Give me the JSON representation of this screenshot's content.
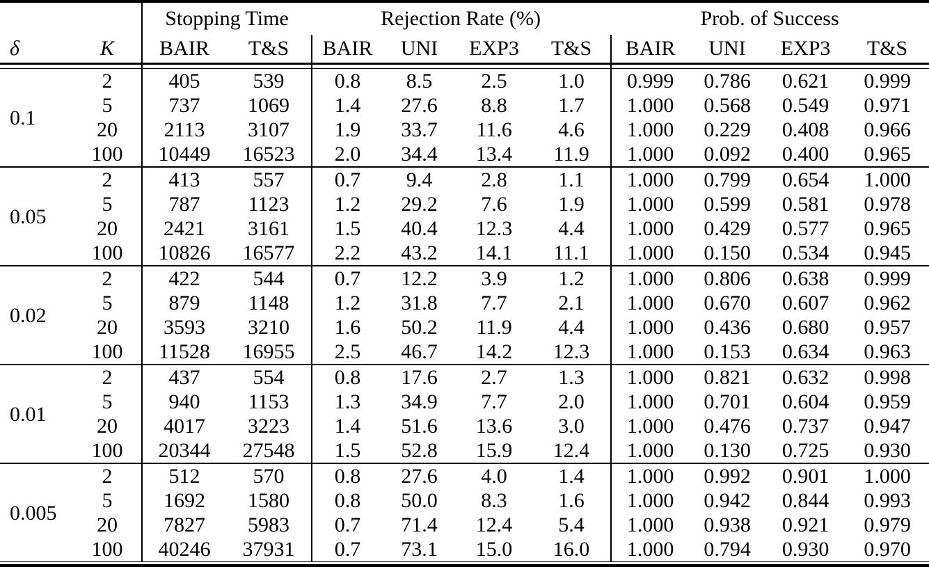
{
  "table": {
    "col_groups": [
      {
        "label": "",
        "span": 2
      },
      {
        "label": "Stopping Time",
        "span": 2
      },
      {
        "label": "Rejection Rate (%)",
        "span": 4
      },
      {
        "label": "Prob. of Success",
        "span": 4
      }
    ],
    "sub_headers": [
      "δ",
      "K",
      "BAIR",
      "T&S",
      "BAIR",
      "UNI",
      "EXP3",
      "T&S",
      "BAIR",
      "UNI",
      "EXP3",
      "T&S"
    ],
    "groups": [
      {
        "delta": "0.1",
        "rows": [
          {
            "k": "2",
            "cells": [
              "405",
              "539",
              "0.8",
              "8.5",
              "2.5",
              "1.0",
              "0.999",
              "0.786",
              "0.621",
              "0.999"
            ]
          },
          {
            "k": "5",
            "cells": [
              "737",
              "1069",
              "1.4",
              "27.6",
              "8.8",
              "1.7",
              "1.000",
              "0.568",
              "0.549",
              "0.971"
            ]
          },
          {
            "k": "20",
            "cells": [
              "2113",
              "3107",
              "1.9",
              "33.7",
              "11.6",
              "4.6",
              "1.000",
              "0.229",
              "0.408",
              "0.966"
            ]
          },
          {
            "k": "100",
            "cells": [
              "10449",
              "16523",
              "2.0",
              "34.4",
              "13.4",
              "11.9",
              "1.000",
              "0.092",
              "0.400",
              "0.965"
            ]
          }
        ]
      },
      {
        "delta": "0.05",
        "rows": [
          {
            "k": "2",
            "cells": [
              "413",
              "557",
              "0.7",
              "9.4",
              "2.8",
              "1.1",
              "1.000",
              "0.799",
              "0.654",
              "1.000"
            ]
          },
          {
            "k": "5",
            "cells": [
              "787",
              "1123",
              "1.2",
              "29.2",
              "7.6",
              "1.9",
              "1.000",
              "0.599",
              "0.581",
              "0.978"
            ]
          },
          {
            "k": "20",
            "cells": [
              "2421",
              "3161",
              "1.5",
              "40.4",
              "12.3",
              "4.4",
              "1.000",
              "0.429",
              "0.577",
              "0.965"
            ]
          },
          {
            "k": "100",
            "cells": [
              "10826",
              "16577",
              "2.2",
              "43.2",
              "14.1",
              "11.1",
              "1.000",
              "0.150",
              "0.534",
              "0.945"
            ]
          }
        ]
      },
      {
        "delta": "0.02",
        "rows": [
          {
            "k": "2",
            "cells": [
              "422",
              "544",
              "0.7",
              "12.2",
              "3.9",
              "1.2",
              "1.000",
              "0.806",
              "0.638",
              "0.999"
            ]
          },
          {
            "k": "5",
            "cells": [
              "879",
              "1148",
              "1.2",
              "31.8",
              "7.7",
              "2.1",
              "1.000",
              "0.670",
              "0.607",
              "0.962"
            ]
          },
          {
            "k": "20",
            "cells": [
              "3593",
              "3210",
              "1.6",
              "50.2",
              "11.9",
              "4.4",
              "1.000",
              "0.436",
              "0.680",
              "0.957"
            ]
          },
          {
            "k": "100",
            "cells": [
              "11528",
              "16955",
              "2.5",
              "46.7",
              "14.2",
              "12.3",
              "1.000",
              "0.153",
              "0.634",
              "0.963"
            ]
          }
        ]
      },
      {
        "delta": "0.01",
        "rows": [
          {
            "k": "2",
            "cells": [
              "437",
              "554",
              "0.8",
              "17.6",
              "2.7",
              "1.3",
              "1.000",
              "0.821",
              "0.632",
              "0.998"
            ]
          },
          {
            "k": "5",
            "cells": [
              "940",
              "1153",
              "1.3",
              "34.9",
              "7.7",
              "2.0",
              "1.000",
              "0.701",
              "0.604",
              "0.959"
            ]
          },
          {
            "k": "20",
            "cells": [
              "4017",
              "3223",
              "1.4",
              "51.6",
              "13.6",
              "3.0",
              "1.000",
              "0.476",
              "0.737",
              "0.947"
            ]
          },
          {
            "k": "100",
            "cells": [
              "20344",
              "27548",
              "1.5",
              "52.8",
              "15.9",
              "12.4",
              "1.000",
              "0.130",
              "0.725",
              "0.930"
            ]
          }
        ]
      },
      {
        "delta": "0.005",
        "rows": [
          {
            "k": "2",
            "cells": [
              "512",
              "570",
              "0.8",
              "27.6",
              "4.0",
              "1.4",
              "1.000",
              "0.992",
              "0.901",
              "1.000"
            ]
          },
          {
            "k": "5",
            "cells": [
              "1692",
              "1580",
              "0.8",
              "50.0",
              "8.3",
              "1.6",
              "1.000",
              "0.942",
              "0.844",
              "0.993"
            ]
          },
          {
            "k": "20",
            "cells": [
              "7827",
              "5983",
              "0.7",
              "71.4",
              "12.4",
              "5.4",
              "1.000",
              "0.938",
              "0.921",
              "0.979"
            ]
          },
          {
            "k": "100",
            "cells": [
              "40246",
              "37931",
              "0.7",
              "73.1",
              "15.0",
              "16.0",
              "1.000",
              "0.794",
              "0.930",
              "0.970"
            ]
          }
        ]
      }
    ]
  }
}
